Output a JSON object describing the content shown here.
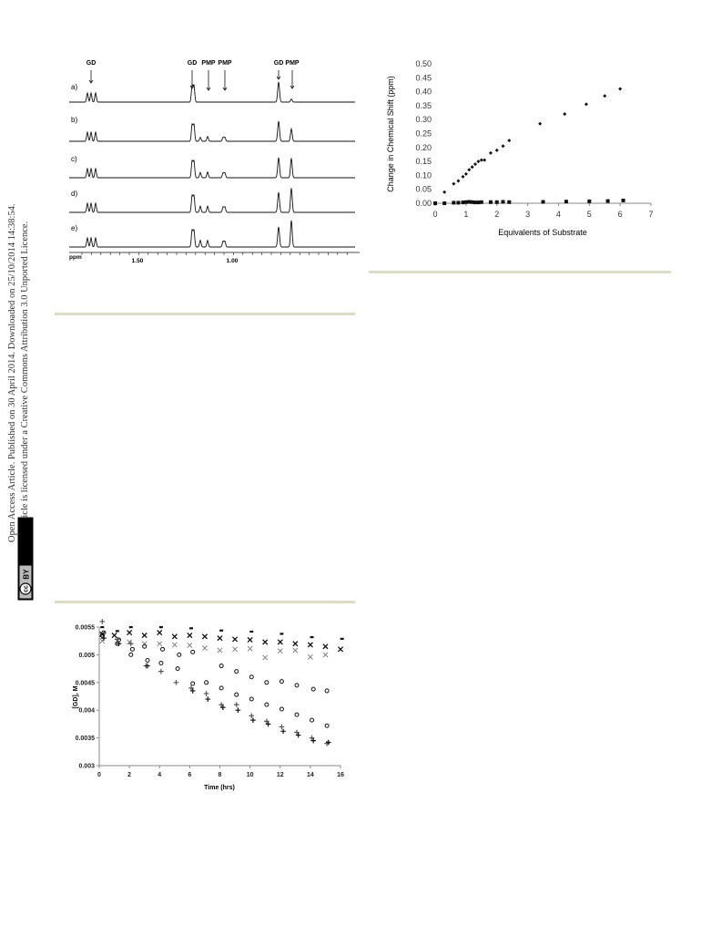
{
  "sidebar": {
    "line1": "Open Access Article. Published on 30 April 2014. Downloaded on 25/10/2014 14:38:54.",
    "line2": "This article is licensed under a Creative Commons Attribution 3.0 Unported Licence.",
    "badge_cc": "cc",
    "badge_by": "BY"
  },
  "nmr": {
    "peak_labels": [
      "GD",
      "GD",
      "PMP",
      "PMP",
      "GD",
      "PMP"
    ],
    "trace_labels": [
      "a)",
      "b)",
      "c)",
      "d)",
      "e)"
    ],
    "axis_label": "ppm",
    "ticks": [
      "1.50",
      "1.00"
    ]
  },
  "chart_data": [
    {
      "type": "scatter",
      "xlabel": "Equivalents of Substrate",
      "ylabel": "Change in Chemical Shift (ppm)",
      "xlim": [
        0,
        7
      ],
      "ylim": [
        0,
        0.5
      ],
      "xticks": [
        0,
        1,
        2,
        3,
        4,
        5,
        6,
        7
      ],
      "yticks": [
        "0.00",
        "0.05",
        "0.10",
        "0.15",
        "0.20",
        "0.25",
        "0.30",
        "0.35",
        "0.40",
        "0.45",
        "0.50"
      ],
      "series": [
        {
          "marker": "diamond",
          "x": [
            0.3,
            0.6,
            0.75,
            0.9,
            1.0,
            1.1,
            1.2,
            1.3,
            1.4,
            1.5,
            1.6,
            1.8,
            2.0,
            2.2,
            2.4,
            3.4,
            4.2,
            4.9,
            5.5,
            6.0
          ],
          "y": [
            0.04,
            0.07,
            0.08,
            0.095,
            0.105,
            0.12,
            0.13,
            0.14,
            0.15,
            0.155,
            0.155,
            0.18,
            0.19,
            0.205,
            0.225,
            0.285,
            0.32,
            0.355,
            0.385,
            0.41
          ]
        },
        {
          "marker": "square",
          "x": [
            0.0,
            0.3,
            0.6,
            0.75,
            0.9,
            1.0,
            1.1,
            1.2,
            1.3,
            1.4,
            1.5,
            1.8,
            2.0,
            2.2,
            2.4,
            3.5,
            4.25,
            5.0,
            5.6,
            6.1
          ],
          "y": [
            0.0,
            0.0,
            0.002,
            0.002,
            0.003,
            0.004,
            0.005,
            0.004,
            0.003,
            0.003,
            0.004,
            0.004,
            0.004,
            0.005,
            0.004,
            0.005,
            0.006,
            0.007,
            0.008,
            0.01
          ]
        }
      ]
    },
    {
      "type": "scatter",
      "xlabel": "Time (hrs)",
      "ylabel": "[GD], M",
      "xlim": [
        0,
        16
      ],
      "ylim": [
        0.003,
        0.0055
      ],
      "xticks": [
        0,
        2,
        4,
        6,
        8,
        10,
        12,
        14,
        16
      ],
      "yticks": [
        "0.003",
        "0.0035",
        "0.004",
        "0.0045",
        "0.005",
        "0.0055"
      ],
      "series": [
        {
          "marker": "dash",
          "x": [
            0.2,
            1.2,
            2.1,
            4.1,
            6.1,
            8.1,
            10.1,
            12.1,
            14.1,
            16.1
          ],
          "y": [
            0.0055,
            0.00543,
            0.0055,
            0.0055,
            0.00548,
            0.00544,
            0.00542,
            0.00538,
            0.00532,
            0.00529
          ]
        },
        {
          "marker": "x-bold",
          "x": [
            0.2,
            1.0,
            2.0,
            3.0,
            4.0,
            5.0,
            6.0,
            7.0,
            8.0,
            9.0,
            10.0,
            11.0,
            12.0,
            13.0,
            14.0,
            15.0,
            16.0
          ],
          "y": [
            0.00537,
            0.00535,
            0.0054,
            0.00535,
            0.0054,
            0.00533,
            0.00535,
            0.00533,
            0.0053,
            0.00528,
            0.00527,
            0.00523,
            0.00523,
            0.0052,
            0.00518,
            0.00515,
            0.0051
          ]
        },
        {
          "marker": "x-light",
          "x": [
            0.2,
            1.2,
            2.0,
            3.0,
            4.0,
            5.0,
            6.0,
            7.0,
            8.0,
            9.0,
            10.0,
            11.0,
            12.0,
            13.0,
            14.0,
            15.0
          ],
          "y": [
            0.00525,
            0.00525,
            0.00523,
            0.0052,
            0.0052,
            0.00518,
            0.00517,
            0.00512,
            0.00508,
            0.0051,
            0.00511,
            0.00495,
            0.00507,
            0.00508,
            0.00496,
            0.005
          ],
          "color": "#777777"
        },
        {
          "marker": "circle",
          "x": [
            0.3,
            1.2,
            2.1,
            3.0,
            4.2,
            5.3,
            6.2,
            8.1,
            9.1,
            10.1,
            11.1,
            12.1,
            13.1,
            14.2,
            15.1
          ],
          "y": [
            0.0054,
            0.0052,
            0.005,
            0.00515,
            0.0051,
            0.005,
            0.00505,
            0.0048,
            0.0047,
            0.0046,
            0.0045,
            0.00452,
            0.00445,
            0.00438,
            0.00435
          ]
        },
        {
          "marker": "circle",
          "x": [
            0.2,
            1.3,
            2.2,
            3.2,
            4.1,
            5.2,
            6.2,
            7.1,
            8.1,
            9.1,
            10.1,
            11.1,
            12.1,
            13.1,
            14.1,
            15.1
          ],
          "y": [
            0.00535,
            0.00527,
            0.0051,
            0.0049,
            0.00485,
            0.00475,
            0.00448,
            0.0045,
            0.0044,
            0.00428,
            0.0042,
            0.0041,
            0.00402,
            0.00392,
            0.00382,
            0.00372
          ]
        },
        {
          "marker": "plus",
          "x": [
            0.2,
            1.2,
            2.1,
            3.1,
            4.1,
            5.1,
            6.1,
            7.1,
            8.1,
            9.1,
            10.1,
            11.1,
            12.1,
            13.1,
            14.1,
            15.1
          ],
          "y": [
            0.0056,
            0.00528,
            0.0052,
            0.0048,
            0.0047,
            0.0045,
            0.0044,
            0.0043,
            0.0041,
            0.0041,
            0.0039,
            0.0038,
            0.0037,
            0.0036,
            0.0035,
            0.0034
          ],
          "color": "#555555"
        },
        {
          "marker": "plus",
          "x": [
            0.3,
            1.3,
            3.2,
            6.2,
            7.2,
            8.2,
            9.2,
            10.2,
            11.2,
            12.2,
            13.2,
            14.2,
            15.2
          ],
          "y": [
            0.0053,
            0.0052,
            0.0048,
            0.00435,
            0.0042,
            0.00405,
            0.004,
            0.00382,
            0.00375,
            0.00362,
            0.00355,
            0.00345,
            0.00342
          ]
        }
      ]
    }
  ]
}
